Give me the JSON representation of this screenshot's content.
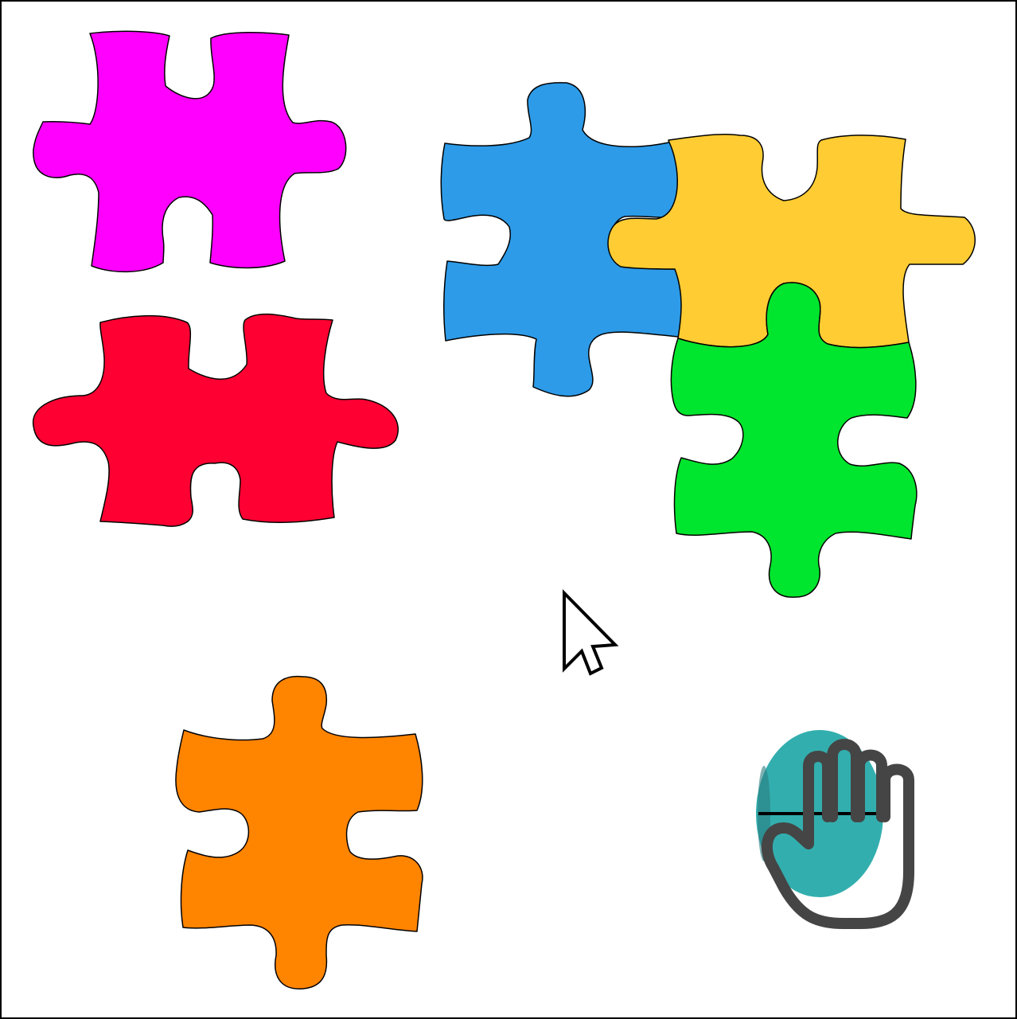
{
  "board": {
    "background": "#ffffff",
    "border": "#000000"
  },
  "pieces": [
    {
      "id": "magenta",
      "color": "#ff00ff"
    },
    {
      "id": "red",
      "color": "#ff0033"
    },
    {
      "id": "blue",
      "color": "#2d9be8"
    },
    {
      "id": "yellow",
      "color": "#ffcc33"
    },
    {
      "id": "green",
      "color": "#00e52d"
    },
    {
      "id": "orange",
      "color": "#ff8400"
    }
  ],
  "cursors": {
    "pointer": {
      "icon": "arrow-pointer-icon",
      "fill": "#ffffff",
      "stroke": "#000000"
    },
    "grab": {
      "icon": "hand-grab-icon",
      "fill": "#33aeae",
      "stroke": "#454545"
    }
  }
}
